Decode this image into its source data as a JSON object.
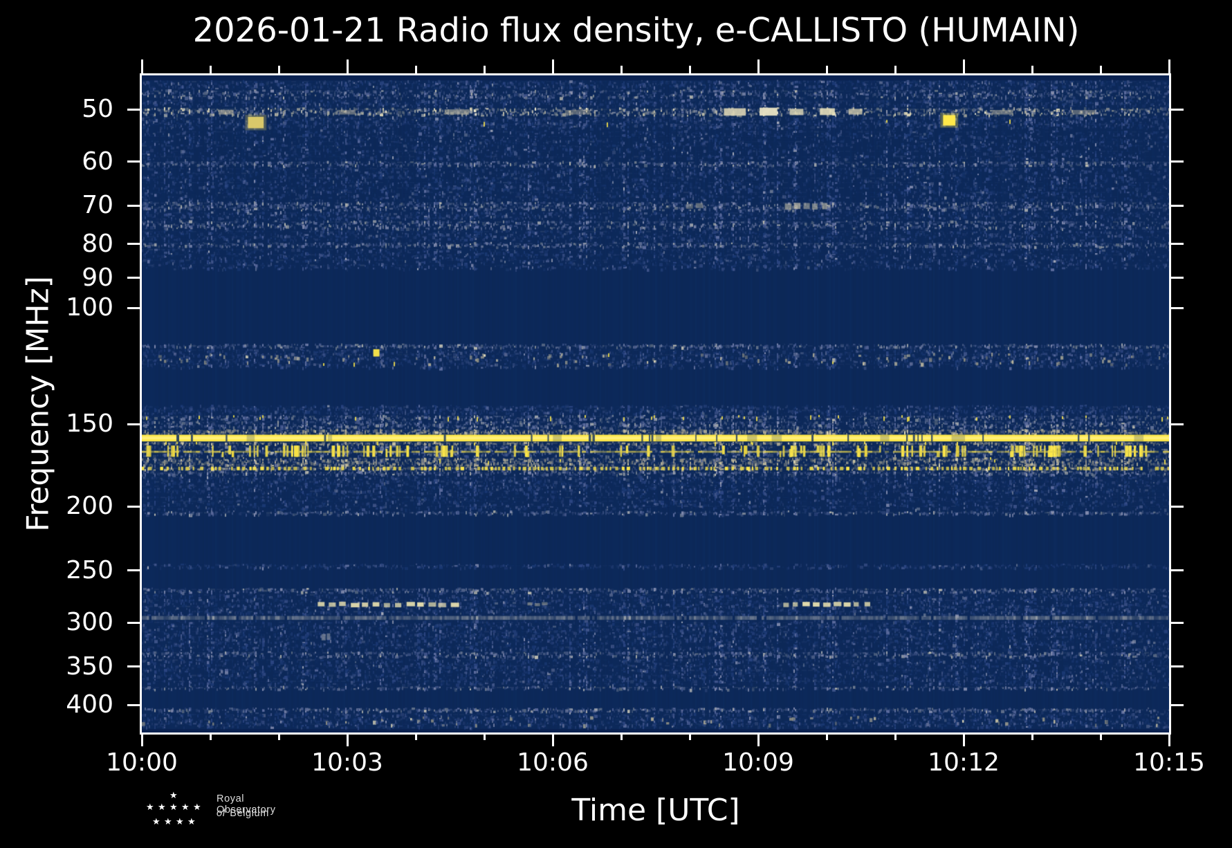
{
  "figure": {
    "title": "2026-01-21 Radio flux density, e-CALLISTO (HUMAIN)"
  },
  "axes": {
    "xlabel": "Time [UTC]",
    "ylabel": "Frequency [MHz]"
  },
  "logo": {
    "star_glyph": "★",
    "line1": "Royal Observatory",
    "line2_italic": "of",
    "line2_rest": "Belgium"
  },
  "colors": {
    "background": "#000000",
    "spine": "#ffffff",
    "text": "#ffffff",
    "base": "#0d2a5c",
    "stripe": "#0a2150",
    "yellow": "#ffe94a"
  },
  "chart_data": {
    "type": "heatmap",
    "kind": "radio spectrogram",
    "instrument": "e-CALLISTO",
    "station": "HUMAIN",
    "date": "2026-01-21",
    "t_start_utc": "10:00",
    "t_end_utc": "10:15",
    "t_range_min": [
      0,
      15
    ],
    "f_range_mhz": [
      44.4,
      440.4
    ],
    "f_scale": "log",
    "x_tick_labels": [
      "10:00",
      "10:03",
      "10:06",
      "10:09",
      "10:12",
      "10:15"
    ],
    "x_tick_minutes": [
      0,
      3,
      6,
      9,
      12,
      15
    ],
    "x_minor_tick_minutes": [
      1,
      2,
      4,
      5,
      7,
      8,
      10,
      11,
      13,
      14
    ],
    "y_tick_mhz": [
      50,
      60,
      70,
      80,
      90,
      100,
      150,
      200,
      250,
      300,
      350,
      400
    ],
    "legend": "none",
    "grid": false,
    "palettes": {
      "blue": [
        [
          "#1a3872",
          3
        ],
        [
          "#2a4480",
          3
        ],
        [
          "#3d5288",
          2.2
        ],
        [
          "#5a6a9c",
          1.1
        ],
        [
          "#7e88ab",
          0.4
        ],
        [
          "#a3a8b8",
          0.1
        ]
      ],
      "gray": [
        [
          "#3d5288",
          2
        ],
        [
          "#5a6a9c",
          2.2
        ],
        [
          "#7e88ab",
          2
        ],
        [
          "#9aa0a8",
          1
        ],
        [
          "#b8b8ae",
          0.3
        ]
      ],
      "bright": [
        [
          "#5a6a9c",
          1.5
        ],
        [
          "#8b93a8",
          2
        ],
        [
          "#b3b2a2",
          2
        ],
        [
          "#d8d2b4",
          1.2
        ],
        [
          "#f0ead0",
          0.5
        ]
      ],
      "tan": [
        [
          "#5f6c96",
          1.6
        ],
        [
          "#8c8c82",
          2
        ],
        [
          "#a9a592",
          2.2
        ],
        [
          "#c6bfa2",
          1.2
        ],
        [
          "#e0d9b8",
          0.4
        ]
      ]
    },
    "bands": [
      {
        "f0": 45.1,
        "f1": 46.6,
        "style": "noise",
        "palette": "blue",
        "density": 0.55
      },
      {
        "f0": 46.6,
        "f1": 48.2,
        "style": "noise",
        "palette": "gray",
        "density": 0.55
      },
      {
        "f0": 48.2,
        "f1": 49.6,
        "style": "noise",
        "palette": "blue",
        "density": 0.55
      },
      {
        "f0": 49.6,
        "f1": 51.2,
        "style": "noise",
        "palette": "bright",
        "density": 0.6
      },
      {
        "f0": 51.2,
        "f1": 53.6,
        "style": "noise",
        "palette": "blue",
        "density": 0.6,
        "sparkle": 0.004
      },
      {
        "f0": 53.6,
        "f1": 59.8,
        "style": "noise",
        "palette": "blue",
        "density": 0.34
      },
      {
        "f0": 59.8,
        "f1": 61.1,
        "style": "noise",
        "palette": "gray",
        "density": 0.6
      },
      {
        "f0": 61.1,
        "f1": 68.9,
        "style": "noise",
        "palette": "blue",
        "density": 0.4
      },
      {
        "f0": 68.9,
        "f1": 71.3,
        "style": "noise",
        "palette": "gray",
        "density": 0.6
      },
      {
        "f0": 71.3,
        "f1": 73.6,
        "style": "noise",
        "palette": "blue",
        "density": 0.48
      },
      {
        "f0": 73.6,
        "f1": 76.1,
        "style": "noise",
        "palette": "gray",
        "density": 0.55
      },
      {
        "f0": 76.1,
        "f1": 79.4,
        "style": "noise",
        "palette": "blue",
        "density": 0.42
      },
      {
        "f0": 79.4,
        "f1": 81.1,
        "style": "noise",
        "palette": "gray",
        "density": 0.6
      },
      {
        "f0": 81.1,
        "f1": 87.6,
        "style": "noise",
        "palette": "blue",
        "density": 0.38
      },
      {
        "f0": 113.2,
        "f1": 115.2,
        "style": "noise",
        "palette": "gray",
        "density": 0.6
      },
      {
        "f0": 115.2,
        "f1": 123.6,
        "style": "noise",
        "palette": "blue",
        "density": 0.5,
        "tan": 0.22,
        "sparkle": 0.01
      },
      {
        "f0": 140.2,
        "f1": 145.2,
        "style": "noise",
        "palette": "blue",
        "density": 0.55
      },
      {
        "f0": 145.2,
        "f1": 148.2,
        "style": "noise",
        "palette": "gray",
        "density": 0.55,
        "sparkle": 0.05
      },
      {
        "f0": 148.2,
        "f1": 152.6,
        "style": "noise",
        "palette": "gray",
        "density": 0.65
      },
      {
        "f0": 152.6,
        "f1": 155.7,
        "style": "noise",
        "palette": "tan",
        "density": 0.85
      },
      {
        "f0": 155.7,
        "f1": 159.4,
        "style": "solid",
        "color": "#ffe94a"
      },
      {
        "f0": 159.4,
        "f1": 161.5,
        "style": "noise",
        "palette": "tan",
        "density": 0.75,
        "sparkle": 0.03
      },
      {
        "f0": 161.5,
        "f1": 168.4,
        "style": "bars",
        "palette": "gray",
        "density": 0.5,
        "bars": 95,
        "line_f": 164.7
      },
      {
        "f0": 168.4,
        "f1": 173.9,
        "style": "noise",
        "palette": "tan",
        "density": 0.8,
        "sparkle": 0.015
      },
      {
        "f0": 173.9,
        "f1": 176.5,
        "style": "dots",
        "palette": "tan",
        "density": 0.8
      },
      {
        "f0": 176.5,
        "f1": 179.6,
        "style": "noise",
        "palette": "gray",
        "density": 0.6
      },
      {
        "f0": 179.6,
        "f1": 192.2,
        "style": "noise",
        "palette": "blue",
        "density": 0.5
      },
      {
        "f0": 192.2,
        "f1": 202.8,
        "style": "noise",
        "palette": "blue",
        "density": 0.32
      },
      {
        "f0": 202.8,
        "f1": 206.3,
        "style": "noise",
        "palette": "gray",
        "density": 0.5
      },
      {
        "f0": 244.1,
        "f1": 248.6,
        "style": "noise",
        "palette": "blue",
        "density": 0.48
      },
      {
        "f0": 265.4,
        "f1": 271.0,
        "style": "noise",
        "palette": "gray",
        "density": 0.55
      },
      {
        "f0": 271.0,
        "f1": 293.2,
        "style": "noise",
        "palette": "blue",
        "density": 0.5
      },
      {
        "f0": 293.2,
        "f1": 297.2,
        "style": "line",
        "color": "#9aa0a8",
        "density": 0.7
      },
      {
        "f0": 297.2,
        "f1": 331.5,
        "style": "noise",
        "palette": "blue",
        "density": 0.5
      },
      {
        "f0": 331.5,
        "f1": 339.5,
        "style": "noise",
        "palette": "gray",
        "density": 0.6
      },
      {
        "f0": 339.5,
        "f1": 374.0,
        "style": "noise",
        "palette": "blue",
        "density": 0.48
      },
      {
        "f0": 374.0,
        "f1": 380.0,
        "style": "noise",
        "palette": "gray",
        "density": 0.45
      },
      {
        "f0": 403.5,
        "f1": 410.5,
        "style": "noise",
        "palette": "gray",
        "density": 0.6
      },
      {
        "f0": 410.5,
        "f1": 434.0,
        "style": "noise",
        "palette": "blue",
        "density": 0.52,
        "tan": 0.1
      }
    ],
    "features": [
      {
        "t0": 1.55,
        "t1": 1.78,
        "f0": 51.3,
        "f1": 53.4,
        "color": "#e2cf6a",
        "alpha": 0.95,
        "glow": true
      },
      {
        "t0": 11.7,
        "t1": 11.88,
        "f0": 51.0,
        "f1": 52.9,
        "color": "#ffe94a",
        "alpha": 1,
        "glow": true
      },
      {
        "t0": 8.5,
        "t1": 8.82,
        "f0": 49.8,
        "f1": 51.1,
        "color": "#d9d3b4",
        "alpha": 0.9
      },
      {
        "t0": 9.02,
        "t1": 9.28,
        "f0": 49.7,
        "f1": 51.1,
        "color": "#eae4c4",
        "alpha": 0.95
      },
      {
        "t0": 9.46,
        "t1": 9.66,
        "f0": 49.9,
        "f1": 51.0,
        "color": "#d9d3b4",
        "alpha": 0.85
      },
      {
        "t0": 9.9,
        "t1": 10.12,
        "f0": 49.8,
        "f1": 51.0,
        "color": "#e4deba",
        "alpha": 0.9
      },
      {
        "t0": 10.32,
        "t1": 10.52,
        "f0": 49.9,
        "f1": 50.9,
        "color": "#cfc9ad",
        "alpha": 0.8
      },
      {
        "t0": 1.12,
        "t1": 1.34,
        "f0": 50.1,
        "f1": 50.9,
        "color": "#bfb9a2",
        "alpha": 0.6
      },
      {
        "t0": 2.88,
        "t1": 3.12,
        "f0": 50.1,
        "f1": 50.9,
        "color": "#b5af9a",
        "alpha": 0.5
      },
      {
        "t0": 4.42,
        "t1": 4.78,
        "f0": 50.0,
        "f1": 50.9,
        "color": "#c5bfa6",
        "alpha": 0.55
      },
      {
        "t0": 6.18,
        "t1": 6.55,
        "f0": 50.1,
        "f1": 50.9,
        "color": "#b5af9a",
        "alpha": 0.45
      },
      {
        "t0": 12.42,
        "t1": 12.72,
        "f0": 50.1,
        "f1": 50.9,
        "color": "#bfb9a2",
        "alpha": 0.5
      },
      {
        "t0": 13.58,
        "t1": 13.92,
        "f0": 50.1,
        "f1": 50.9,
        "color": "#b5af9a",
        "alpha": 0.45
      },
      {
        "t0": 2.55,
        "t1": 4.65,
        "f0": 279.5,
        "f1": 283.8,
        "color": "#ece3b0",
        "alpha": 0.95,
        "dashes": 13
      },
      {
        "t0": 9.35,
        "t1": 10.68,
        "f0": 279.5,
        "f1": 283.8,
        "color": "#ece3b0",
        "alpha": 0.95,
        "dashes": 9
      },
      {
        "t0": 5.62,
        "t1": 5.95,
        "f0": 280.0,
        "f1": 283.0,
        "color": "#c6bfa4",
        "alpha": 0.55,
        "dashes": 3
      },
      {
        "t0": 9.38,
        "t1": 10.05,
        "f0": 69.4,
        "f1": 70.9,
        "color": "#c9c3aa",
        "alpha": 0.7,
        "dashes": 5
      },
      {
        "t0": 7.95,
        "t1": 8.22,
        "f0": 69.5,
        "f1": 70.7,
        "color": "#b8b29c",
        "alpha": 0.55,
        "dashes": 2
      },
      {
        "t0": 3.38,
        "t1": 3.47,
        "f0": 115.5,
        "f1": 118.5,
        "color": "#ffe94a",
        "alpha": 0.95
      },
      {
        "t0": 2.62,
        "t1": 2.78,
        "f0": 312.0,
        "f1": 319.0,
        "color": "#9aa0a8",
        "alpha": 0.75,
        "dashes": 2
      }
    ]
  }
}
